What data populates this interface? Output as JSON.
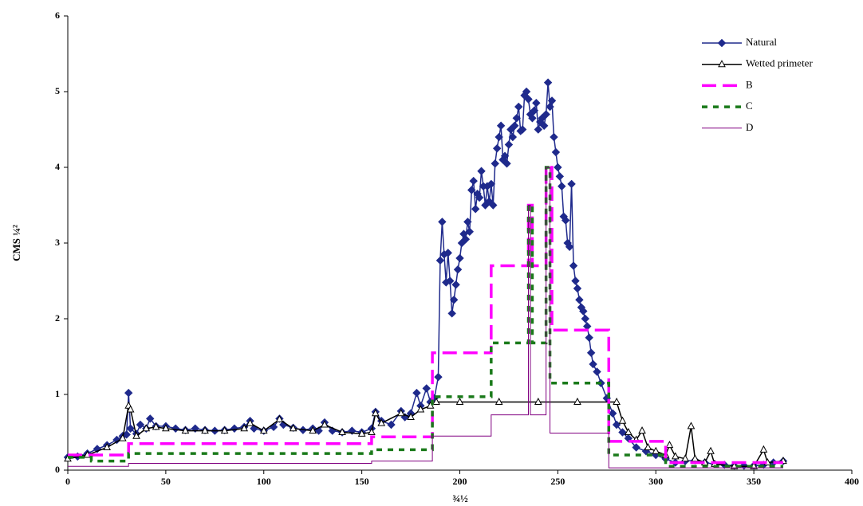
{
  "chart_data": {
    "type": "line",
    "xlabel": "¾½",
    "ylabel": "CMS   ¼²",
    "xlim": [
      0,
      400
    ],
    "ylim": [
      0,
      6
    ],
    "xticks": [
      0,
      50,
      100,
      150,
      200,
      250,
      300,
      350,
      400
    ],
    "yticks": [
      0,
      1,
      2,
      3,
      4,
      5,
      6
    ],
    "grid": false,
    "legend": "upper right",
    "series": [
      {
        "name": "Natural",
        "color": "#1f2a8c",
        "marker": "diamond",
        "x": [
          0,
          5,
          10,
          15,
          20,
          25,
          28,
          30,
          31,
          32,
          35,
          37,
          40,
          42,
          45,
          50,
          55,
          60,
          65,
          70,
          75,
          80,
          85,
          90,
          93,
          95,
          100,
          105,
          108,
          110,
          115,
          120,
          125,
          128,
          131,
          135,
          140,
          145,
          150,
          155,
          157,
          160,
          165,
          170,
          172,
          175,
          178,
          180,
          183,
          185,
          187,
          189,
          190,
          191,
          192,
          193,
          194,
          195,
          196,
          197,
          198,
          199,
          200,
          201,
          202,
          203,
          204,
          205,
          206,
          207,
          208,
          209,
          210,
          211,
          212,
          213,
          214,
          215,
          216,
          217,
          218,
          219,
          220,
          221,
          222,
          223,
          224,
          225,
          226,
          227,
          228,
          229,
          230,
          231,
          232,
          233,
          234,
          235,
          236,
          237,
          238,
          239,
          240,
          241,
          242,
          243,
          244,
          245,
          246,
          247,
          248,
          249,
          250,
          251,
          252,
          253,
          254,
          255,
          256,
          257,
          258,
          259,
          260,
          261,
          262,
          263,
          264,
          265,
          266,
          267,
          268,
          270,
          272,
          275,
          278,
          280,
          283,
          286,
          290,
          295,
          300,
          305,
          310,
          315,
          320,
          325,
          330,
          335,
          340,
          345,
          350,
          355,
          360,
          365
        ],
        "values": [
          0.17,
          0.18,
          0.22,
          0.28,
          0.33,
          0.4,
          0.45,
          0.47,
          1.02,
          0.55,
          0.48,
          0.6,
          0.55,
          0.68,
          0.58,
          0.58,
          0.55,
          0.53,
          0.55,
          0.53,
          0.52,
          0.53,
          0.55,
          0.57,
          0.65,
          0.55,
          0.52,
          0.57,
          0.68,
          0.6,
          0.56,
          0.53,
          0.55,
          0.52,
          0.63,
          0.52,
          0.5,
          0.52,
          0.5,
          0.55,
          0.77,
          0.65,
          0.6,
          0.78,
          0.7,
          0.75,
          1.02,
          0.85,
          1.08,
          0.9,
          0.95,
          1.23,
          2.77,
          3.28,
          2.85,
          2.48,
          2.87,
          2.5,
          2.07,
          2.25,
          2.45,
          2.65,
          2.8,
          3.0,
          3.12,
          3.05,
          3.28,
          3.15,
          3.7,
          3.82,
          3.45,
          3.65,
          3.6,
          3.95,
          3.75,
          3.5,
          3.75,
          3.55,
          3.78,
          3.5,
          4.05,
          4.25,
          4.4,
          4.55,
          4.1,
          4.15,
          4.05,
          4.3,
          4.5,
          4.4,
          4.55,
          4.65,
          4.8,
          4.48,
          4.5,
          4.95,
          5.0,
          4.9,
          4.7,
          4.65,
          4.75,
          4.85,
          4.5,
          4.6,
          4.65,
          4.55,
          4.7,
          5.12,
          4.8,
          4.88,
          4.4,
          4.2,
          4.0,
          3.88,
          3.75,
          3.35,
          3.3,
          3.0,
          2.95,
          3.78,
          2.7,
          2.5,
          2.4,
          2.25,
          2.15,
          2.1,
          2.0,
          1.9,
          1.75,
          1.55,
          1.4,
          1.3,
          1.15,
          0.95,
          0.75,
          0.6,
          0.5,
          0.42,
          0.3,
          0.25,
          0.2,
          0.15,
          0.1,
          0.12,
          0.13,
          0.1,
          0.08,
          0.07,
          0.06,
          0.06,
          0.06,
          0.07,
          0.1,
          0.12
        ]
      },
      {
        "name": "Wetted primeter",
        "color": "#000000",
        "marker": "triangle",
        "x": [
          0,
          10,
          20,
          28,
          31,
          32,
          35,
          40,
          45,
          50,
          60,
          70,
          80,
          90,
          93,
          100,
          108,
          115,
          125,
          131,
          140,
          150,
          155,
          157,
          160,
          170,
          175,
          180,
          185,
          188,
          200,
          220,
          240,
          260,
          280,
          283,
          286,
          290,
          293,
          296,
          300,
          305,
          307,
          310,
          315,
          318,
          320,
          325,
          328,
          330,
          340,
          350,
          355,
          357,
          365
        ],
        "values": [
          0.15,
          0.2,
          0.3,
          0.42,
          0.85,
          0.8,
          0.45,
          0.55,
          0.57,
          0.55,
          0.52,
          0.52,
          0.52,
          0.55,
          0.62,
          0.52,
          0.67,
          0.55,
          0.52,
          0.6,
          0.5,
          0.48,
          0.5,
          0.75,
          0.62,
          0.75,
          0.7,
          0.8,
          0.85,
          0.9,
          0.9,
          0.9,
          0.9,
          0.9,
          0.9,
          0.65,
          0.5,
          0.4,
          0.52,
          0.3,
          0.25,
          0.2,
          0.33,
          0.18,
          0.15,
          0.58,
          0.15,
          0.1,
          0.25,
          0.08,
          0.05,
          0.05,
          0.27,
          0.1,
          0.12
        ]
      },
      {
        "name": "B",
        "color": "#ff00ff",
        "dash": "18 8",
        "width": 3.5,
        "x": [
          0,
          31,
          31,
          155,
          155,
          186,
          186,
          216,
          216,
          235,
          235,
          237,
          237,
          244,
          244,
          247,
          247,
          276,
          276,
          305,
          305,
          365
        ],
        "values": [
          0.2,
          0.2,
          0.35,
          0.35,
          0.44,
          0.44,
          1.55,
          1.55,
          2.7,
          2.7,
          3.5,
          3.5,
          2.7,
          2.7,
          4.0,
          4.0,
          1.85,
          1.85,
          0.38,
          0.38,
          0.1,
          0.1
        ]
      },
      {
        "name": "C",
        "color": "#1a7a1a",
        "dash": "7 7",
        "width": 3.5,
        "x": [
          0,
          12,
          12,
          31,
          31,
          155,
          155,
          186,
          186,
          216,
          216,
          235,
          235,
          237,
          237,
          244,
          244,
          246,
          246,
          276,
          276,
          305,
          305,
          365
        ],
        "values": [
          0.17,
          0.17,
          0.12,
          0.12,
          0.22,
          0.22,
          0.27,
          0.27,
          0.97,
          0.97,
          1.68,
          1.68,
          3.5,
          3.5,
          1.68,
          1.68,
          4.0,
          4.0,
          1.15,
          1.15,
          0.2,
          0.2,
          0.05,
          0.05
        ]
      },
      {
        "name": "D",
        "color": "#800080",
        "width": 1,
        "x": [
          0,
          31,
          31,
          155,
          155,
          186,
          186,
          216,
          216,
          235,
          235,
          236,
          236,
          244,
          244,
          246,
          246,
          276,
          276,
          365
        ],
        "values": [
          0.05,
          0.05,
          0.09,
          0.09,
          0.12,
          0.12,
          0.45,
          0.45,
          0.73,
          0.73,
          3.5,
          3.5,
          0.73,
          0.73,
          4.0,
          4.0,
          0.49,
          0.49,
          0.03,
          0.03
        ]
      }
    ]
  }
}
